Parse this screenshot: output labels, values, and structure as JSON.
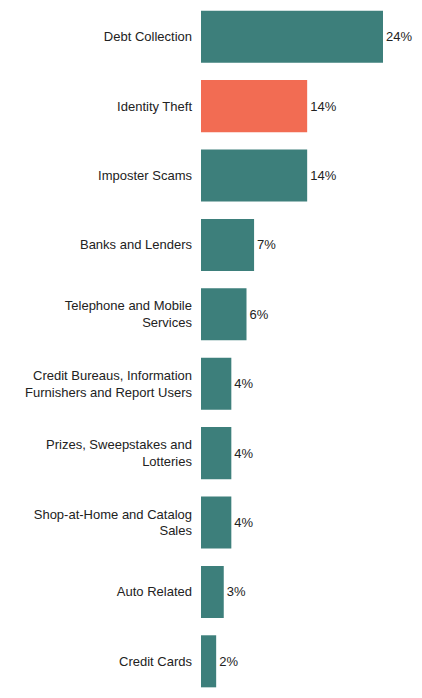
{
  "chart_data": {
    "type": "bar",
    "orientation": "horizontal",
    "categories": [
      "Debt Collection",
      "Identity Theft",
      "Imposter Scams",
      "Banks and Lenders",
      "Telephone and Mobile Services",
      "Credit Bureaus, Information Furnishers and Report Users",
      "Prizes, Sweepstakes and Lotteries",
      "Shop-at-Home and Catalog Sales",
      "Auto Related",
      "Credit Cards"
    ],
    "values": [
      24,
      14,
      14,
      7,
      6,
      4,
      4,
      4,
      3,
      2
    ],
    "value_labels": [
      "24%",
      "14%",
      "14%",
      "7%",
      "6%",
      "4%",
      "4%",
      "4%",
      "3%",
      "2%"
    ],
    "colors": [
      "#3d7f7b",
      "#f26c53",
      "#3d7f7b",
      "#3d7f7b",
      "#3d7f7b",
      "#3d7f7b",
      "#3d7f7b",
      "#3d7f7b",
      "#3d7f7b",
      "#3d7f7b"
    ],
    "xlim": [
      0,
      24
    ],
    "data_labels": true,
    "tick_labels": "y",
    "grid": false
  }
}
